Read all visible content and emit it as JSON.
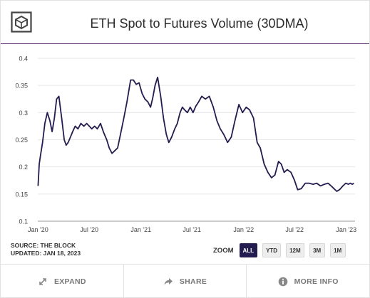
{
  "header": {
    "title": "ETH Spot to Futures Volume (30DMA)"
  },
  "source": {
    "line1": "SOURCE: THE BLOCK",
    "line2": "UPDATED: JAN 18, 2023"
  },
  "zoom": {
    "label": "ZOOM",
    "options": [
      "ALL",
      "YTD",
      "12M",
      "3M",
      "1M"
    ],
    "selected": "ALL"
  },
  "footer": {
    "expand": "EXPAND",
    "share": "SHARE",
    "more_info": "MORE INFO"
  },
  "colors": {
    "line": "#231c4f",
    "accent": "#5b2f6e",
    "grid": "#e6e6e6"
  },
  "chart_data": {
    "type": "line",
    "title": "ETH Spot to Futures Volume (30DMA)",
    "xlabel": "",
    "ylabel": "",
    "ylim": [
      0.1,
      0.4
    ],
    "yticks": [
      0.1,
      0.15,
      0.2,
      0.25,
      0.3,
      0.35,
      0.4
    ],
    "ytick_labels": [
      "0.1",
      "0.15",
      "0.2",
      "0.25",
      "0.3",
      "0.35",
      "0.4"
    ],
    "xlim": [
      "2019-12-31",
      "2023-02-01"
    ],
    "xticks": [
      "2020-01-01",
      "2020-07-01",
      "2021-01-01",
      "2021-07-01",
      "2022-01-01",
      "2022-07-01",
      "2023-01-01"
    ],
    "xtick_labels": [
      "Jan '20",
      "Jul '20",
      "Jan '21",
      "Jul '21",
      "Jan '22",
      "Jul '22",
      "Jan '23"
    ],
    "grid": true,
    "legend": "none",
    "series": [
      {
        "x": [
          "2020-01-01",
          "2020-01-05",
          "2020-01-10",
          "2020-01-17",
          "2020-01-25",
          "2020-02-03",
          "2020-02-12",
          "2020-02-20",
          "2020-02-28",
          "2020-03-07",
          "2020-03-15",
          "2020-03-25",
          "2020-04-03",
          "2020-04-10",
          "2020-04-17",
          "2020-04-25",
          "2020-05-03",
          "2020-05-12",
          "2020-05-22",
          "2020-06-01",
          "2020-06-12",
          "2020-06-22",
          "2020-07-01",
          "2020-07-10",
          "2020-07-20",
          "2020-07-30",
          "2020-08-10",
          "2020-08-20",
          "2020-09-01",
          "2020-09-10",
          "2020-09-20",
          "2020-09-30",
          "2020-10-10",
          "2020-10-20",
          "2020-11-01",
          "2020-11-12",
          "2020-11-25",
          "2020-12-05",
          "2020-12-15",
          "2020-12-25",
          "2021-01-05",
          "2021-01-15",
          "2021-01-25",
          "2021-02-04",
          "2021-02-12",
          "2021-02-20",
          "2021-03-01",
          "2021-03-12",
          "2021-03-22",
          "2021-04-01",
          "2021-04-10",
          "2021-04-20",
          "2021-05-01",
          "2021-05-10",
          "2021-05-20",
          "2021-05-28",
          "2021-06-05",
          "2021-06-15",
          "2021-06-25",
          "2021-07-05",
          "2021-07-15",
          "2021-07-25",
          "2021-08-05",
          "2021-08-18",
          "2021-09-01",
          "2021-09-15",
          "2021-09-28",
          "2021-10-10",
          "2021-10-22",
          "2021-11-05",
          "2021-11-18",
          "2021-12-01",
          "2021-12-15",
          "2021-12-28",
          "2022-01-10",
          "2022-01-22",
          "2022-02-05",
          "2022-02-18",
          "2022-03-01",
          "2022-03-15",
          "2022-03-28",
          "2022-04-10",
          "2022-04-22",
          "2022-05-05",
          "2022-05-15",
          "2022-05-25",
          "2022-06-05",
          "2022-06-18",
          "2022-07-01",
          "2022-07-12",
          "2022-07-25",
          "2022-08-08",
          "2022-08-22",
          "2022-09-05",
          "2022-09-18",
          "2022-10-01",
          "2022-10-15",
          "2022-10-28",
          "2022-11-08",
          "2022-11-18",
          "2022-11-28",
          "2022-12-08",
          "2022-12-20",
          "2022-12-30",
          "2023-01-08",
          "2023-01-16",
          "2023-01-22",
          "2023-01-28"
        ],
        "y": [
          0.165,
          0.205,
          0.222,
          0.245,
          0.28,
          0.3,
          0.285,
          0.265,
          0.29,
          0.325,
          0.33,
          0.29,
          0.25,
          0.24,
          0.245,
          0.255,
          0.265,
          0.275,
          0.27,
          0.28,
          0.275,
          0.28,
          0.275,
          0.27,
          0.275,
          0.27,
          0.28,
          0.265,
          0.25,
          0.235,
          0.225,
          0.23,
          0.235,
          0.26,
          0.29,
          0.32,
          0.36,
          0.36,
          0.352,
          0.355,
          0.335,
          0.325,
          0.32,
          0.31,
          0.328,
          0.35,
          0.365,
          0.33,
          0.29,
          0.26,
          0.245,
          0.255,
          0.27,
          0.28,
          0.3,
          0.31,
          0.305,
          0.3,
          0.31,
          0.3,
          0.312,
          0.32,
          0.33,
          0.325,
          0.33,
          0.31,
          0.285,
          0.27,
          0.26,
          0.245,
          0.255,
          0.285,
          0.315,
          0.3,
          0.31,
          0.305,
          0.29,
          0.245,
          0.235,
          0.205,
          0.19,
          0.18,
          0.185,
          0.21,
          0.205,
          0.19,
          0.195,
          0.19,
          0.175,
          0.158,
          0.16,
          0.17,
          0.17,
          0.168,
          0.17,
          0.165,
          0.168,
          0.17,
          0.165,
          0.16,
          0.155,
          0.158,
          0.165,
          0.17,
          0.168,
          0.17,
          0.168,
          0.17
        ]
      }
    ]
  }
}
